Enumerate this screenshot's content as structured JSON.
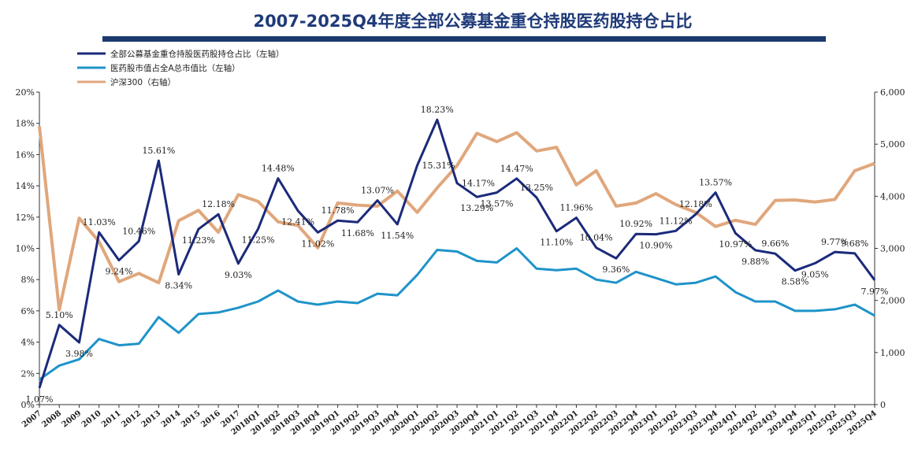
{
  "colors": {
    "title": "#1f3a78",
    "title_bar": "#1d3a6e",
    "fund_weight": "#1b2a7a",
    "pharma_mcap": "#1f93c9",
    "hs300": "#e0a77c"
  },
  "chart_data": {
    "type": "line",
    "title": "2007-2025Q4年度全部公募基金重仓持股医药股持仓占比",
    "categories": [
      "2007",
      "2008",
      "2009",
      "2010",
      "2011",
      "2012",
      "2013",
      "2014",
      "2015",
      "2016",
      "2017",
      "2018Q1",
      "2018Q2",
      "2018Q3",
      "2018Q4",
      "2019Q1",
      "2019Q2",
      "2019Q3",
      "2019Q4",
      "2020Q1",
      "2020Q2",
      "2020Q3",
      "2020Q4",
      "2021Q1",
      "2021Q2",
      "2021Q3",
      "2021Q4",
      "2022Q1",
      "2022Q2",
      "2022Q3",
      "2022Q4",
      "2023Q1",
      "2023Q2",
      "2023Q3",
      "2023Q4",
      "2024Q1",
      "2024Q2",
      "2024Q3",
      "2024Q4",
      "2025Q1",
      "2025Q2",
      "2025Q3",
      "2025Q4"
    ],
    "y_left": {
      "min": 0,
      "max": 20,
      "step": 2,
      "tick_labels": [
        "0%",
        "2%",
        "4%",
        "6%",
        "8%",
        "10%",
        "12%",
        "14%",
        "16%",
        "18%",
        "20%"
      ]
    },
    "y_right": {
      "min": 0,
      "max": 6000,
      "step": 1000,
      "tick_labels": [
        "0",
        "1,000",
        "2,000",
        "3,000",
        "4,000",
        "5,000",
        "6,000"
      ]
    },
    "legend": [
      "全部公募基金重仓持股医药股持仓占比（左轴）",
      "医药股市值占全A总市值比（左轴）",
      "沪深300（右轴）"
    ],
    "series": [
      {
        "name": "全部公募基金重仓持股医药股持仓占比（左轴）",
        "axis": "left",
        "values": [
          1.07,
          5.1,
          3.98,
          11.03,
          9.24,
          10.46,
          15.61,
          8.34,
          11.23,
          12.18,
          9.03,
          11.25,
          14.48,
          12.41,
          11.02,
          11.78,
          11.68,
          13.07,
          11.54,
          15.31,
          18.23,
          14.17,
          13.29,
          13.57,
          14.47,
          13.25,
          11.1,
          11.96,
          10.04,
          9.36,
          10.92,
          10.9,
          11.12,
          12.18,
          13.57,
          10.97,
          9.88,
          9.66,
          8.58,
          9.05,
          9.77,
          9.68,
          7.97
        ]
      },
      {
        "name": "医药股市值占全A总市值比（左轴）",
        "axis": "left",
        "values": [
          1.6,
          2.5,
          2.9,
          4.2,
          3.8,
          3.9,
          5.6,
          4.6,
          5.8,
          5.9,
          6.2,
          6.6,
          7.3,
          6.6,
          6.4,
          6.6,
          6.5,
          7.1,
          7.0,
          8.3,
          9.9,
          9.8,
          9.2,
          9.1,
          10.0,
          8.7,
          8.6,
          8.7,
          8.0,
          7.8,
          8.5,
          8.1,
          7.7,
          7.8,
          8.2,
          7.2,
          6.6,
          6.6,
          6.0,
          6.0,
          6.1,
          6.4,
          5.7
        ]
      },
      {
        "name": "沪深300（右轴）",
        "axis": "right",
        "values": [
          5340,
          1820,
          3580,
          3130,
          2360,
          2520,
          2340,
          3530,
          3730,
          3310,
          4030,
          3900,
          3510,
          3440,
          3010,
          3870,
          3830,
          3810,
          4100,
          3690,
          4160,
          4590,
          5210,
          5050,
          5220,
          4870,
          4940,
          4220,
          4490,
          3810,
          3870,
          4050,
          3840,
          3690,
          3420,
          3540,
          3460,
          3920,
          3930,
          3890,
          3940,
          4490,
          4630
        ]
      }
    ],
    "data_labels": [
      {
        "text": "1.07%",
        "series": 0,
        "index": 0,
        "pos": "below"
      },
      {
        "text": "5.10%",
        "series": 0,
        "index": 1,
        "pos": "above"
      },
      {
        "text": "3.98%",
        "series": 0,
        "index": 2,
        "pos": "below"
      },
      {
        "text": "11.03%",
        "series": 0,
        "index": 3,
        "pos": "above"
      },
      {
        "text": "9.24%",
        "series": 0,
        "index": 4,
        "pos": "below"
      },
      {
        "text": "10.46%",
        "series": 0,
        "index": 5,
        "pos": "above"
      },
      {
        "text": "15.61%",
        "series": 0,
        "index": 6,
        "pos": "above"
      },
      {
        "text": "8.34%",
        "series": 0,
        "index": 7,
        "pos": "below"
      },
      {
        "text": "11.23%",
        "series": 0,
        "index": 8,
        "pos": "below"
      },
      {
        "text": "12.18%",
        "series": 0,
        "index": 9,
        "pos": "above"
      },
      {
        "text": "9.03%",
        "series": 0,
        "index": 10,
        "pos": "below"
      },
      {
        "text": "11.25%",
        "series": 0,
        "index": 11,
        "pos": "below"
      },
      {
        "text": "14.48%",
        "series": 0,
        "index": 12,
        "pos": "above"
      },
      {
        "text": "12.41%",
        "series": 0,
        "index": 13,
        "pos": "below"
      },
      {
        "text": "11.02%",
        "series": 0,
        "index": 14,
        "pos": "below"
      },
      {
        "text": "11.78%",
        "series": 0,
        "index": 15,
        "pos": "above"
      },
      {
        "text": "11.68%",
        "series": 0,
        "index": 16,
        "pos": "below"
      },
      {
        "text": "13.07%",
        "series": 0,
        "index": 17,
        "pos": "above"
      },
      {
        "text": "11.54%",
        "series": 0,
        "index": 18,
        "pos": "below"
      },
      {
        "text": "15.31%",
        "series": 0,
        "index": 19,
        "pos": "right"
      },
      {
        "text": "18.23%",
        "series": 0,
        "index": 20,
        "pos": "above"
      },
      {
        "text": "14.17%",
        "series": 0,
        "index": 21,
        "pos": "right"
      },
      {
        "text": "13.29%",
        "series": 0,
        "index": 22,
        "pos": "below"
      },
      {
        "text": "13.57%",
        "series": 0,
        "index": 23,
        "pos": "below"
      },
      {
        "text": "14.47%",
        "series": 0,
        "index": 24,
        "pos": "above"
      },
      {
        "text": "13.25%",
        "series": 0,
        "index": 25,
        "pos": "above"
      },
      {
        "text": "11.10%",
        "series": 0,
        "index": 26,
        "pos": "below"
      },
      {
        "text": "11.96%",
        "series": 0,
        "index": 27,
        "pos": "above"
      },
      {
        "text": "10.04%",
        "series": 0,
        "index": 28,
        "pos": "above"
      },
      {
        "text": "9.36%",
        "series": 0,
        "index": 29,
        "pos": "below"
      },
      {
        "text": "10.92%",
        "series": 0,
        "index": 30,
        "pos": "above"
      },
      {
        "text": "10.90%",
        "series": 0,
        "index": 31,
        "pos": "below"
      },
      {
        "text": "11.12%",
        "series": 0,
        "index": 32,
        "pos": "above"
      },
      {
        "text": "12.18%",
        "series": 0,
        "index": 33,
        "pos": "above"
      },
      {
        "text": "13.57%",
        "series": 0,
        "index": 34,
        "pos": "above"
      },
      {
        "text": "10.97%",
        "series": 0,
        "index": 35,
        "pos": "below"
      },
      {
        "text": "9.88%",
        "series": 0,
        "index": 36,
        "pos": "below"
      },
      {
        "text": "9.66%",
        "series": 0,
        "index": 37,
        "pos": "above"
      },
      {
        "text": "8.58%",
        "series": 0,
        "index": 38,
        "pos": "below"
      },
      {
        "text": "9.05%",
        "series": 0,
        "index": 39,
        "pos": "below"
      },
      {
        "text": "9.77%",
        "series": 0,
        "index": 40,
        "pos": "above"
      },
      {
        "text": "9.68%",
        "series": 0,
        "index": 41,
        "pos": "above"
      },
      {
        "text": "7.97%",
        "series": 0,
        "index": 42,
        "pos": "below"
      }
    ]
  }
}
